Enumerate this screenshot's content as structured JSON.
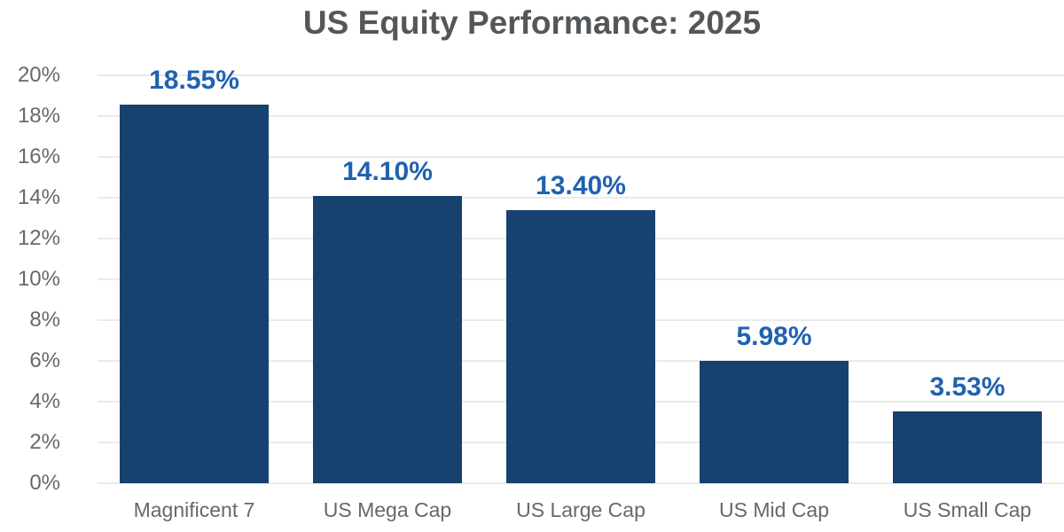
{
  "title": "US Equity Performance: 2025",
  "chart_data": {
    "type": "bar",
    "title": "US Equity Performance: 2025",
    "categories": [
      "Magnificent 7",
      "US Mega Cap",
      "US Large Cap",
      "US Mid Cap",
      "US Small Cap"
    ],
    "values": [
      18.55,
      14.1,
      13.4,
      5.98,
      3.53
    ],
    "value_labels": [
      "18.55%",
      "14.10%",
      "13.40%",
      "5.98%",
      "3.53%"
    ],
    "xlabel": "",
    "ylabel": "",
    "ylim": [
      0,
      20
    ],
    "ytick_step": 2,
    "ytick_labels": [
      "0%",
      "2%",
      "4%",
      "6%",
      "8%",
      "10%",
      "12%",
      "14%",
      "16%",
      "18%",
      "20%"
    ],
    "grid": true,
    "legend": "none",
    "colors": {
      "bar_fill": "#17416e",
      "value_label": "#2062b0",
      "title_text": "#54575a",
      "axis_text": "#65696c",
      "gridline": "#e9eaeb",
      "background": "#ffffff"
    }
  }
}
